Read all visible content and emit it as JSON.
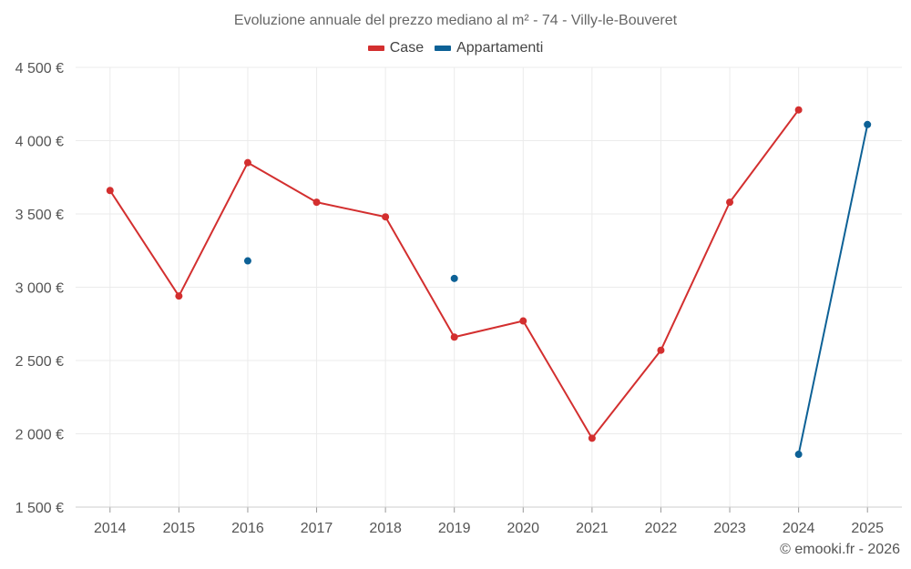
{
  "chart_data": {
    "type": "line",
    "title": "Evoluzione annuale del prezzo mediano al m² - 74 - Villy-le-Bouveret",
    "xlabel": "",
    "ylabel": "",
    "categories": [
      "2014",
      "2015",
      "2016",
      "2017",
      "2018",
      "2019",
      "2020",
      "2021",
      "2022",
      "2023",
      "2024",
      "2025"
    ],
    "ylim": [
      1500,
      4500
    ],
    "yticks": [
      1500,
      2000,
      2500,
      3000,
      3500,
      4000,
      4500
    ],
    "ytick_labels": [
      "1 500 €",
      "2 000 €",
      "2 500 €",
      "3 000 €",
      "3 500 €",
      "4 000 €",
      "4 500 €"
    ],
    "grid": true,
    "legend_position": "top-center",
    "series": [
      {
        "name": "Case",
        "color": "#d32f2f",
        "values": [
          3660,
          2940,
          3850,
          3580,
          3480,
          2660,
          2770,
          1970,
          2570,
          3580,
          4210,
          null
        ]
      },
      {
        "name": "Appartamenti",
        "color": "#0d6196",
        "values": [
          null,
          null,
          3180,
          null,
          null,
          3060,
          null,
          null,
          null,
          null,
          1860,
          4110
        ]
      }
    ]
  },
  "credit": "© emooki.fr - 2026"
}
